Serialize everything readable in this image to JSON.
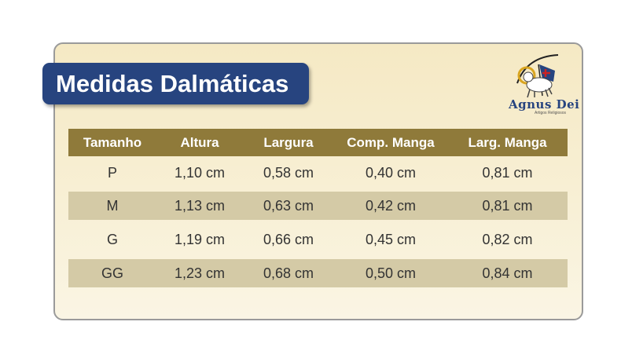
{
  "title": "Medidas Dalmáticas",
  "logo": {
    "name": "Agnus Dei",
    "subtitle": "Artigos Religiosos",
    "icon": "lamb-with-banner-icon"
  },
  "colors": {
    "title_bg": "#27447f",
    "header_bg": "#8f7a3a",
    "alt_row": "#d4caa6",
    "panel_bg": "#f5e9c4"
  },
  "table": {
    "headers": [
      "Tamanho",
      "Altura",
      "Largura",
      "Comp. Manga",
      "Larg. Manga"
    ],
    "rows": [
      [
        "P",
        "1,10 cm",
        "0,58 cm",
        "0,40 cm",
        "0,81 cm"
      ],
      [
        "M",
        "1,13 cm",
        "0,63 cm",
        "0,42 cm",
        "0,81 cm"
      ],
      [
        "G",
        "1,19 cm",
        "0,66 cm",
        "0,45 cm",
        "0,82 cm"
      ],
      [
        "GG",
        "1,23 cm",
        "0,68 cm",
        "0,50 cm",
        "0,84 cm"
      ]
    ]
  }
}
